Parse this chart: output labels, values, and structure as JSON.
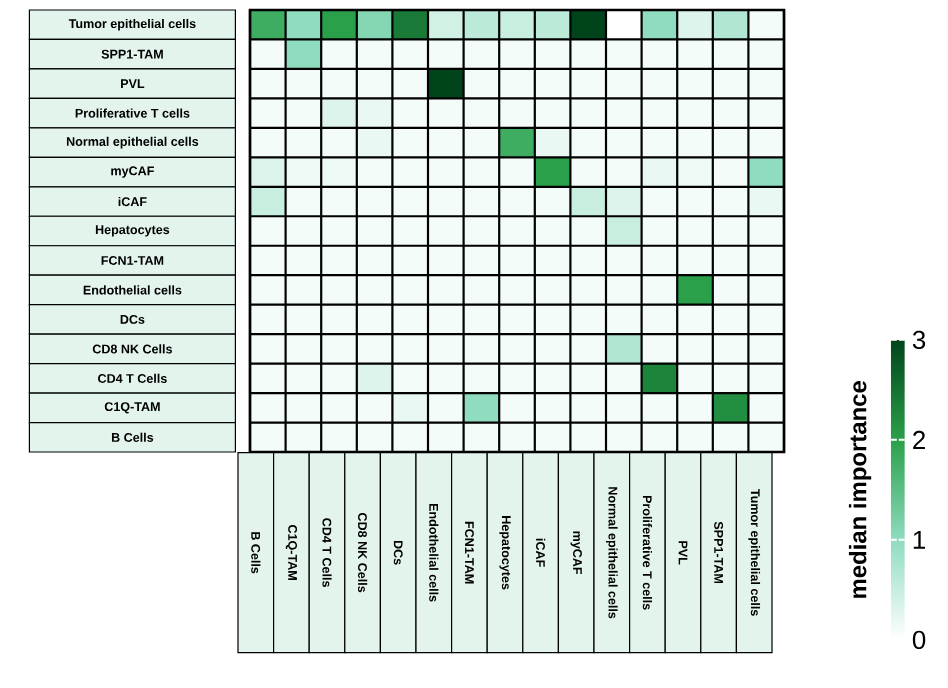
{
  "chart_data": {
    "type": "heatmap",
    "clabel": "median importance",
    "categories": [
      "B Cells",
      "C1Q-TAM",
      "CD4 T Cells",
      "CD8 NK Cells",
      "DCs",
      "Endothelial cells",
      "FCN1-TAM",
      "Hepatocytes",
      "iCAF",
      "myCAF",
      "Normal epithelial cells",
      "Proliferative T cells",
      "PVL",
      "SPP1-TAM",
      "Tumor epithelial cells"
    ],
    "y_categories": [
      "Tumor epithelial cells",
      "SPP1-TAM",
      "PVL",
      "Proliferative T cells",
      "Normal epithelial cells",
      "myCAF",
      "iCAF",
      "Hepatocytes",
      "FCN1-TAM",
      "Endothelial cells",
      "DCs",
      "CD8 NK Cells",
      "CD4 T Cells",
      "C1Q-TAM",
      "B Cells"
    ],
    "cells": [
      [
        1.8,
        1.0,
        2.0,
        1.1,
        2.4,
        0.4,
        0.6,
        0.5,
        0.6,
        3.0,
        0,
        1.0,
        0.3,
        0.7,
        0.1
      ],
      [
        0.1,
        1.0,
        0.1,
        0.1,
        0.1,
        0.1,
        0.1,
        0.1,
        0.1,
        0.1,
        0.1,
        0.1,
        0.1,
        0.1,
        0.1
      ],
      [
        0.1,
        0.1,
        0.1,
        0.1,
        0.1,
        3.0,
        0.1,
        0.1,
        0.1,
        0.1,
        0.1,
        0.1,
        0.1,
        0.1,
        0.1
      ],
      [
        0.1,
        0.1,
        0.3,
        0.2,
        0.1,
        0.1,
        0.1,
        0.1,
        0.1,
        0.1,
        0.1,
        0.1,
        0.1,
        0.1,
        0.1
      ],
      [
        0.1,
        0.1,
        0.1,
        0.2,
        0.1,
        0.1,
        0.1,
        1.8,
        0.2,
        0.1,
        0.1,
        0.1,
        0.1,
        0.1,
        0.1
      ],
      [
        0.3,
        0.15,
        0.15,
        0.1,
        0.1,
        0.1,
        0.1,
        0.1,
        2.0,
        0.1,
        0.1,
        0.2,
        0.15,
        0.1,
        1.0
      ],
      [
        0.5,
        0.1,
        0.1,
        0.1,
        0.1,
        0.1,
        0.1,
        0.1,
        0.1,
        0.5,
        0.3,
        0.1,
        0.1,
        0.1,
        0.2
      ],
      [
        0.1,
        0.1,
        0.1,
        0.1,
        0.1,
        0.1,
        0.1,
        0.1,
        0.1,
        0.1,
        0.5,
        0.1,
        0.1,
        0.1,
        0.1
      ],
      [
        0.1,
        0.1,
        0.1,
        0.1,
        0.1,
        0.1,
        0.1,
        0.1,
        0.1,
        0.1,
        0.1,
        0.1,
        0.1,
        0.1,
        0.1
      ],
      [
        0.1,
        0.1,
        0.1,
        0.1,
        0.1,
        0.1,
        0.1,
        0.1,
        0.1,
        0.1,
        0.1,
        0.1,
        2.0,
        0.1,
        0.1
      ],
      [
        0.1,
        0.1,
        0.1,
        0.1,
        0.1,
        0.1,
        0.1,
        0.1,
        0.1,
        0.1,
        0.1,
        0.1,
        0.1,
        0.1,
        0.1
      ],
      [
        0.1,
        0.1,
        0.1,
        0.1,
        0.1,
        0.1,
        0.1,
        0.1,
        0.1,
        0.1,
        0.7,
        0.1,
        0.1,
        0.1,
        0.1
      ],
      [
        0.1,
        0.1,
        0.1,
        0.3,
        0.1,
        0.1,
        0.1,
        0.1,
        0.1,
        0.1,
        0.1,
        2.3,
        0.1,
        0.1,
        0.1
      ],
      [
        0.1,
        0.1,
        0.1,
        0.1,
        0.2,
        0.1,
        1.0,
        0.1,
        0.1,
        0.1,
        0.1,
        0.1,
        0.1,
        2.2,
        0.1
      ],
      [
        0.1,
        0.1,
        0.1,
        0.1,
        0.1,
        0.1,
        0.1,
        0.1,
        0.1,
        0.1,
        0.1,
        0.1,
        0.1,
        0.1,
        0.1
      ]
    ],
    "grid": true,
    "clim": [
      0,
      3
    ],
    "cticks": [
      0,
      1,
      2,
      3
    ]
  }
}
